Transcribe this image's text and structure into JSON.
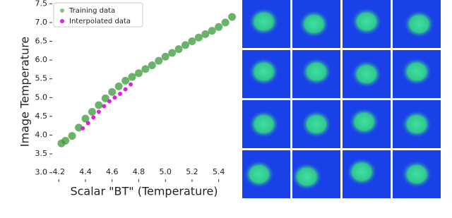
{
  "chart_data": {
    "type": "scatter",
    "x_label": "Scalar \"BT\" (Temperature)",
    "y_label": "Image Temperature",
    "xlim": [
      4.13,
      5.55
    ],
    "ylim": [
      2.75,
      7.6
    ],
    "xticks": [
      4.2,
      4.4,
      4.6,
      4.8,
      {
        "value": 5.0,
        "label": "5.0"
      },
      5.2,
      5.4
    ],
    "yticks": [
      {
        "value": 3.0,
        "label": "3.0"
      },
      3.5,
      {
        "value": 4.0,
        "label": "4.0"
      },
      4.5,
      {
        "value": 5.0,
        "label": "5.0"
      },
      5.5,
      {
        "value": 6.0,
        "label": "6.0"
      },
      6.5,
      {
        "value": 7.0,
        "label": "7.0"
      },
      7.5
    ],
    "legend": "upper left",
    "series": [
      {
        "name": "Training data",
        "color": "#3a9a3a",
        "x": [
          4.22,
          4.25,
          4.3,
          4.35,
          4.4,
          4.45,
          4.5,
          4.55,
          4.6,
          4.65,
          4.7,
          4.75,
          4.8,
          4.85,
          4.9,
          4.95,
          5.0,
          5.05,
          5.1,
          5.15,
          5.2,
          5.25,
          5.3,
          5.35,
          5.4,
          5.45,
          5.5
        ],
        "values": [
          3.78,
          3.85,
          3.98,
          4.2,
          4.44,
          4.62,
          4.8,
          4.98,
          5.15,
          5.3,
          5.45,
          5.55,
          5.65,
          5.76,
          5.86,
          5.98,
          6.09,
          6.19,
          6.29,
          6.4,
          6.5,
          6.6,
          6.69,
          6.78,
          6.88,
          7.0,
          7.15
        ]
      },
      {
        "name": "Interpolated data",
        "color": "#e020e0",
        "x": [
          4.38,
          4.42,
          4.46,
          4.5,
          4.54,
          4.58,
          4.62,
          4.66,
          4.7,
          4.74
        ],
        "values": [
          4.18,
          4.32,
          4.47,
          4.62,
          4.77,
          4.9,
          5.0,
          5.1,
          5.22,
          5.35
        ]
      }
    ]
  }
}
